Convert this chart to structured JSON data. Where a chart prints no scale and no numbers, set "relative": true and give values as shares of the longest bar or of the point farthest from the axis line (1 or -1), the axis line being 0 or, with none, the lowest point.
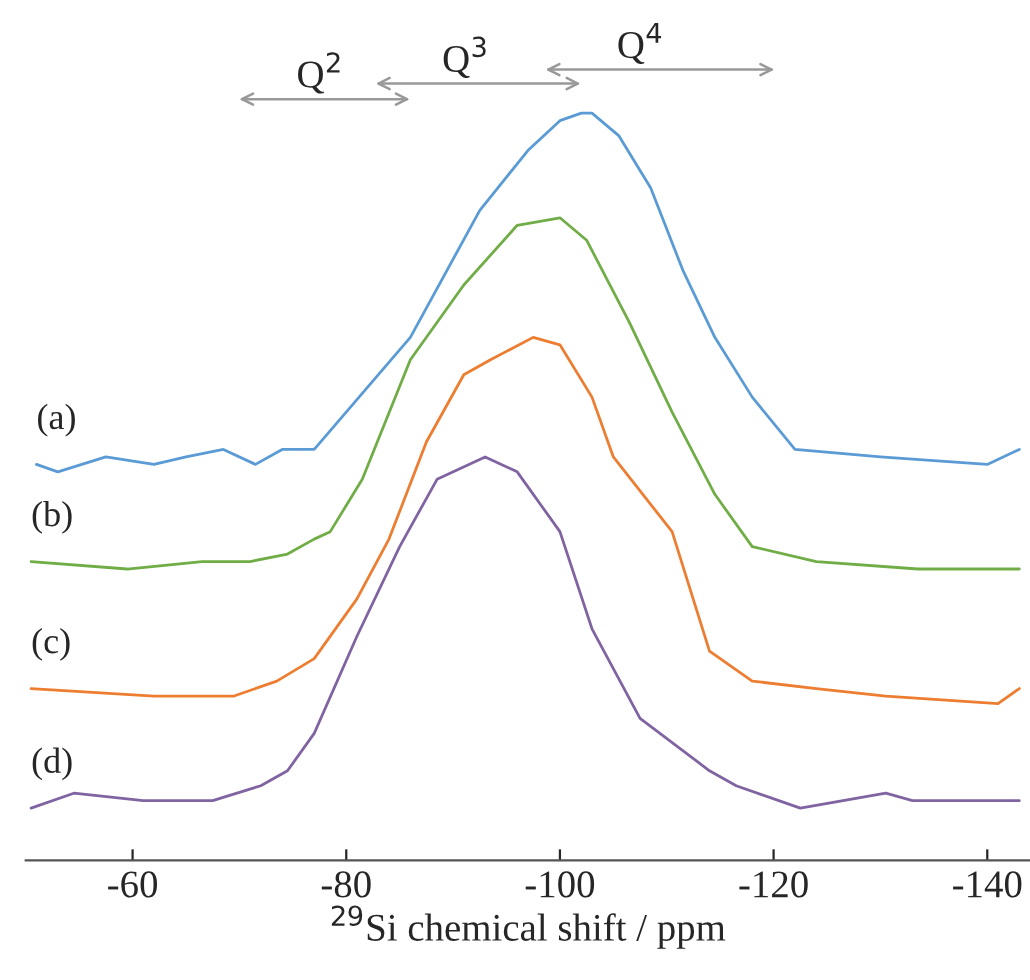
{
  "chart_data": {
    "type": "line",
    "relative": true,
    "xlabel": "$^{29}$Si chemical shift / ppm",
    "xlim": [
      -50,
      -144
    ],
    "xticks": [
      -60,
      -80,
      -100,
      -120,
      -140
    ],
    "grid": false,
    "legend": false,
    "series": [
      {
        "name": "(a)",
        "color": "#5b9bd5",
        "x": [
          -51,
          -53,
          -57.5,
          -62,
          -65,
          -68.5,
          -71.5,
          -74,
          -77,
          -86,
          -92.5,
          -97,
          -100,
          -102,
          -103,
          -105.5,
          -108.5,
          -111.5,
          -114.5,
          -118,
          -122,
          -130,
          -140,
          -143
        ],
        "values": [
          0.53,
          0.52,
          0.54,
          0.53,
          0.54,
          0.55,
          0.53,
          0.55,
          0.55,
          0.7,
          0.87,
          0.95,
          0.99,
          1.0,
          1.0,
          0.97,
          0.9,
          0.79,
          0.7,
          0.62,
          0.55,
          0.54,
          0.53,
          0.55
        ]
      },
      {
        "name": "(b)",
        "color": "#70ad47",
        "x": [
          -50.5,
          -59.5,
          -66.5,
          -71,
          -74.5,
          -77,
          -78.5,
          -81.5,
          -86,
          -91,
          -96,
          -100,
          -102.5,
          -106.5,
          -110.5,
          -114.5,
          -118,
          -124,
          -133.5,
          -143
        ],
        "values": [
          0.4,
          0.39,
          0.4,
          0.4,
          0.41,
          0.43,
          0.44,
          0.51,
          0.67,
          0.77,
          0.85,
          0.86,
          0.83,
          0.72,
          0.6,
          0.49,
          0.42,
          0.4,
          0.39,
          0.39
        ]
      },
      {
        "name": "(c)",
        "color": "#ed7d31",
        "x": [
          -50.5,
          -62,
          -69.5,
          -73.5,
          -77,
          -81,
          -84,
          -87.5,
          -91,
          -93.5,
          -97.5,
          -100,
          -103,
          -105,
          -110.5,
          -114,
          -118,
          -124,
          -130.5,
          -141,
          -143
        ],
        "values": [
          0.23,
          0.22,
          0.22,
          0.24,
          0.27,
          0.35,
          0.43,
          0.56,
          0.65,
          0.67,
          0.7,
          0.69,
          0.62,
          0.54,
          0.44,
          0.28,
          0.24,
          0.23,
          0.22,
          0.21,
          0.23
        ]
      },
      {
        "name": "(d)",
        "color": "#8064a2",
        "x": [
          -50.5,
          -54.5,
          -61,
          -67.5,
          -72,
          -74.5,
          -77,
          -81,
          -85,
          -88.5,
          -93,
          -96,
          -100,
          -103,
          -107.5,
          -114,
          -116.5,
          -122.5,
          -130.5,
          -133,
          -140,
          -143
        ],
        "values": [
          0.07,
          0.09,
          0.08,
          0.08,
          0.1,
          0.12,
          0.17,
          0.3,
          0.42,
          0.51,
          0.54,
          0.52,
          0.44,
          0.31,
          0.19,
          0.12,
          0.1,
          0.07,
          0.09,
          0.08,
          0.08,
          0.08
        ]
      }
    ],
    "annotations": [
      "Q$^{2}$",
      "Q$^{3}$",
      "Q$^{4}$"
    ]
  }
}
